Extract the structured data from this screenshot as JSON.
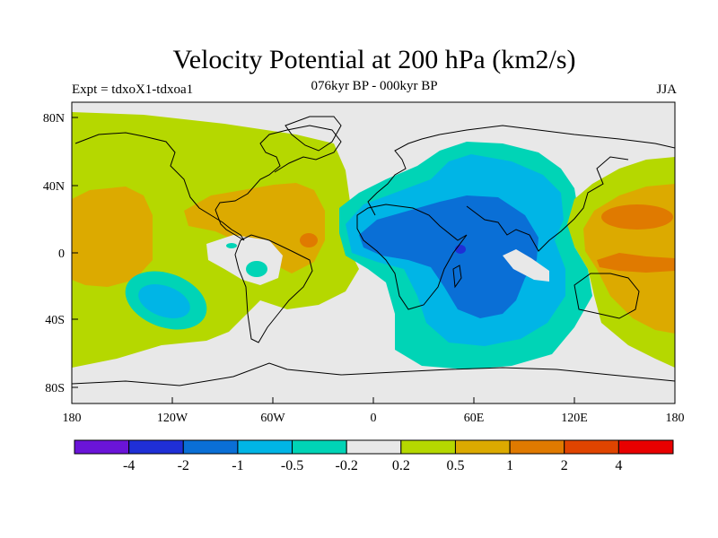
{
  "title": "Velocity Potential at 200 hPa (km2/s)",
  "subtitle": "076kyr BP - 000kyr BP",
  "left_label": "Expt = tdxoX1-tdxoa1",
  "right_label": "JJA",
  "map": {
    "lon_ticks": [
      "180",
      "120W",
      "60W",
      "0",
      "60E",
      "120E",
      "180"
    ],
    "lat_ticks": [
      "80N",
      "40N",
      "0",
      "40S",
      "80S"
    ]
  },
  "colorbar": {
    "colors": [
      "#6a14d8",
      "#1f2fd6",
      "#0a6fd6",
      "#00b5e6",
      "#00d4b6",
      "#e8e8e8",
      "#b5d800",
      "#dcaa00",
      "#e07a00",
      "#e04400",
      "#e80000"
    ],
    "labels": [
      "-4",
      "-2",
      "-1",
      "-0.5",
      "-0.2",
      "0.2",
      "0.5",
      "1",
      "2",
      "4"
    ]
  }
}
